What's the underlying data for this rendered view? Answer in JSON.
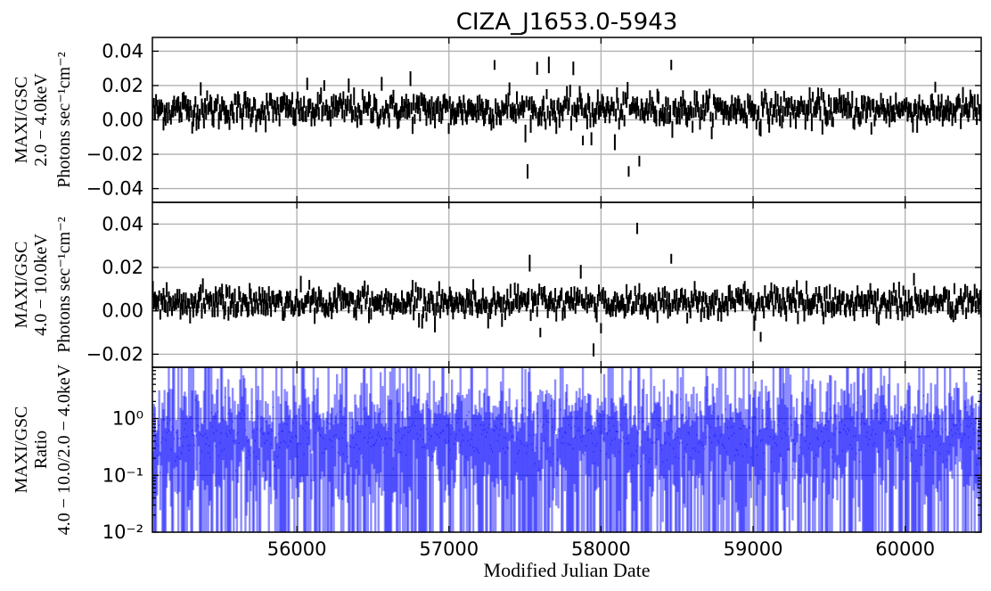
{
  "chart_data": {
    "title": "CIZA_J1653.0-5943",
    "xlabel": "Modified Julian Date",
    "xlim": [
      55050,
      60500
    ],
    "xticks": [
      56000,
      57000,
      58000,
      59000,
      60000
    ],
    "xtick_labels": [
      "56000",
      "57000",
      "58000",
      "59000",
      "60000"
    ],
    "grid": true,
    "panels": [
      {
        "id": "soft",
        "type": "errorbar",
        "ylabel_lines": [
          "MAXI/GSC",
          "2.0 − 4.0keV",
          "Photons sec⁻¹cm⁻²"
        ],
        "ylim": [
          -0.048,
          0.048
        ],
        "yticks": [
          -0.04,
          -0.02,
          0.0,
          0.02,
          0.04
        ],
        "ytick_labels": [
          "−0.04",
          "−0.02",
          "0.00",
          "0.02",
          "0.04"
        ],
        "color": "#000000",
        "base_level": 0.006,
        "noise": 0.004,
        "err": 0.004,
        "bin_days": 7,
        "notable_points": [
          [
            55370,
            0.018
          ],
          [
            56070,
            0.021
          ],
          [
            56180,
            0.02
          ],
          [
            56340,
            0.02
          ],
          [
            56560,
            0.021
          ],
          [
            56750,
            0.024
          ],
          [
            57000,
            -0.005
          ],
          [
            57300,
            0.032
          ],
          [
            57400,
            0.018
          ],
          [
            57520,
            -0.03
          ],
          [
            57580,
            0.03
          ],
          [
            57660,
            0.032
          ],
          [
            57820,
            0.03
          ],
          [
            57880,
            -0.012
          ],
          [
            57940,
            -0.011
          ],
          [
            58090,
            -0.013
          ],
          [
            58180,
            -0.03
          ],
          [
            58250,
            -0.024
          ],
          [
            58460,
            0.032
          ],
          [
            58600,
            -0.004
          ],
          [
            59040,
            -0.005
          ],
          [
            59780,
            -0.005
          ]
        ]
      },
      {
        "id": "hard",
        "type": "errorbar",
        "ylabel_lines": [
          "MAXI/GSC",
          "4.0 − 10.0keV",
          "Photons sec⁻¹cm⁻²"
        ],
        "ylim": [
          -0.026,
          0.05
        ],
        "yticks": [
          -0.02,
          0.0,
          0.02,
          0.04
        ],
        "ytick_labels": [
          "−0.02",
          "0.00",
          "0.02",
          "0.04"
        ],
        "color": "#000000",
        "base_level": 0.004,
        "noise": 0.003,
        "err": 0.003,
        "bin_days": 7,
        "notable_points": [
          [
            56080,
            0.012
          ],
          [
            57530,
            0.022
          ],
          [
            57600,
            -0.01
          ],
          [
            57870,
            0.018
          ],
          [
            57950,
            -0.018
          ],
          [
            58000,
            -0.008
          ],
          [
            58240,
            0.038
          ],
          [
            58460,
            0.024
          ],
          [
            58940,
            0.01
          ],
          [
            59050,
            -0.012
          ],
          [
            59140,
            0.01
          ],
          [
            59540,
            0.008
          ]
        ]
      },
      {
        "id": "ratio",
        "type": "errorbar",
        "ylabel_lines": [
          "MAXI/GSC",
          "Ratio",
          "4.0 − 10.0/2.0 − 4.0keV"
        ],
        "yscale": "log",
        "ylim": [
          0.01,
          8
        ],
        "yticks": [
          0.01,
          0.1,
          1
        ],
        "ytick_labels": [
          "10⁻²",
          "10⁻¹",
          "10⁰"
        ],
        "color": "#0000ff",
        "alpha": 0.45,
        "base_level": 0.5,
        "bin_days": 7
      }
    ]
  }
}
